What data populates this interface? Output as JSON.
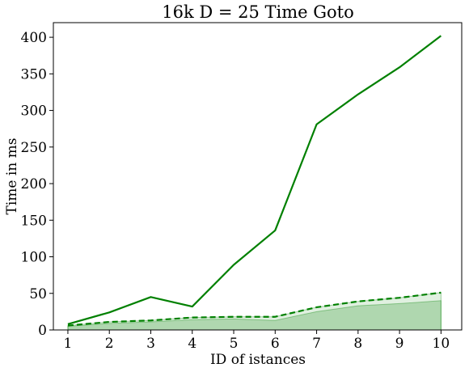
{
  "chart_data": {
    "type": "line",
    "title": "16k    D = 25    Time    Goto",
    "xlabel": "ID of istances",
    "ylabel": "Time in ms",
    "x": [
      1,
      2,
      3,
      4,
      5,
      6,
      7,
      8,
      9,
      10
    ],
    "xlim": [
      0.65,
      10.5
    ],
    "ylim": [
      0,
      420
    ],
    "yticks": [
      0,
      50,
      100,
      150,
      200,
      250,
      300,
      350,
      400
    ],
    "grid": false,
    "series": [
      {
        "style": "solid",
        "color": "#008000",
        "values": [
          8,
          24,
          45,
          32,
          89,
          136,
          281,
          322,
          359,
          402
        ]
      },
      {
        "style": "dashed",
        "color": "#008000",
        "values": [
          6,
          11,
          13,
          17,
          18,
          18,
          31,
          39,
          44,
          51
        ]
      }
    ],
    "areas": [
      {
        "color": "#008000",
        "opacity": 0.12,
        "low": [
          0,
          0,
          0,
          0,
          0,
          0,
          0,
          0,
          0,
          0
        ],
        "high": [
          6,
          11,
          13,
          17,
          18,
          18,
          31,
          39,
          44,
          51
        ]
      },
      {
        "color": "#008000",
        "opacity": 0.22,
        "low": [
          0,
          0,
          0,
          0,
          0,
          0,
          0,
          0,
          0,
          0
        ],
        "high": [
          5,
          9,
          11,
          14,
          15,
          13,
          25,
          33,
          36,
          40
        ]
      }
    ]
  }
}
